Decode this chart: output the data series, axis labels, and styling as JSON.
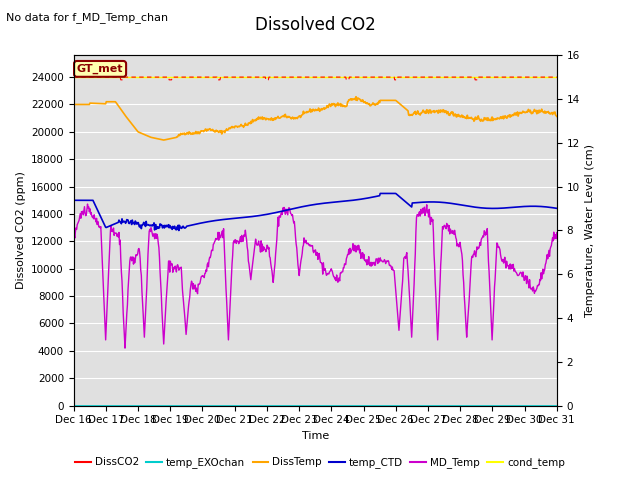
{
  "title": "Dissolved CO2",
  "subtitle": "No data for f_MD_Temp_chan",
  "xlabel": "Time",
  "ylabel_left": "Dissolved CO2 (ppm)",
  "ylabel_right": "Temperature, Water Level (cm)",
  "xlim": [
    16,
    31
  ],
  "ylim_left": [
    0,
    25600
  ],
  "ylim_right": [
    0,
    16
  ],
  "yticks_left": [
    0,
    2000,
    4000,
    6000,
    8000,
    10000,
    12000,
    14000,
    16000,
    18000,
    20000,
    22000,
    24000
  ],
  "yticks_right": [
    0,
    2,
    4,
    6,
    8,
    10,
    12,
    14,
    16
  ],
  "bg_color": "#e0e0e0",
  "legend_colors": [
    "#ff0000",
    "#00ffff",
    "#ffa500",
    "#0000ff",
    "#cc00cc",
    "#ffff00"
  ],
  "legend_labels": [
    "DissCO2",
    "temp_EXOchan",
    "DissTemp",
    "temp_CTD",
    "MD_Temp",
    "cond_temp"
  ],
  "gt_met_fc": "#ffffb0",
  "gt_met_ec": "#8b0000",
  "gt_met_tc": "#8b0000",
  "grid_color": "#ffffff",
  "title_fontsize": 12,
  "label_fontsize": 8,
  "tick_fontsize": 7.5
}
